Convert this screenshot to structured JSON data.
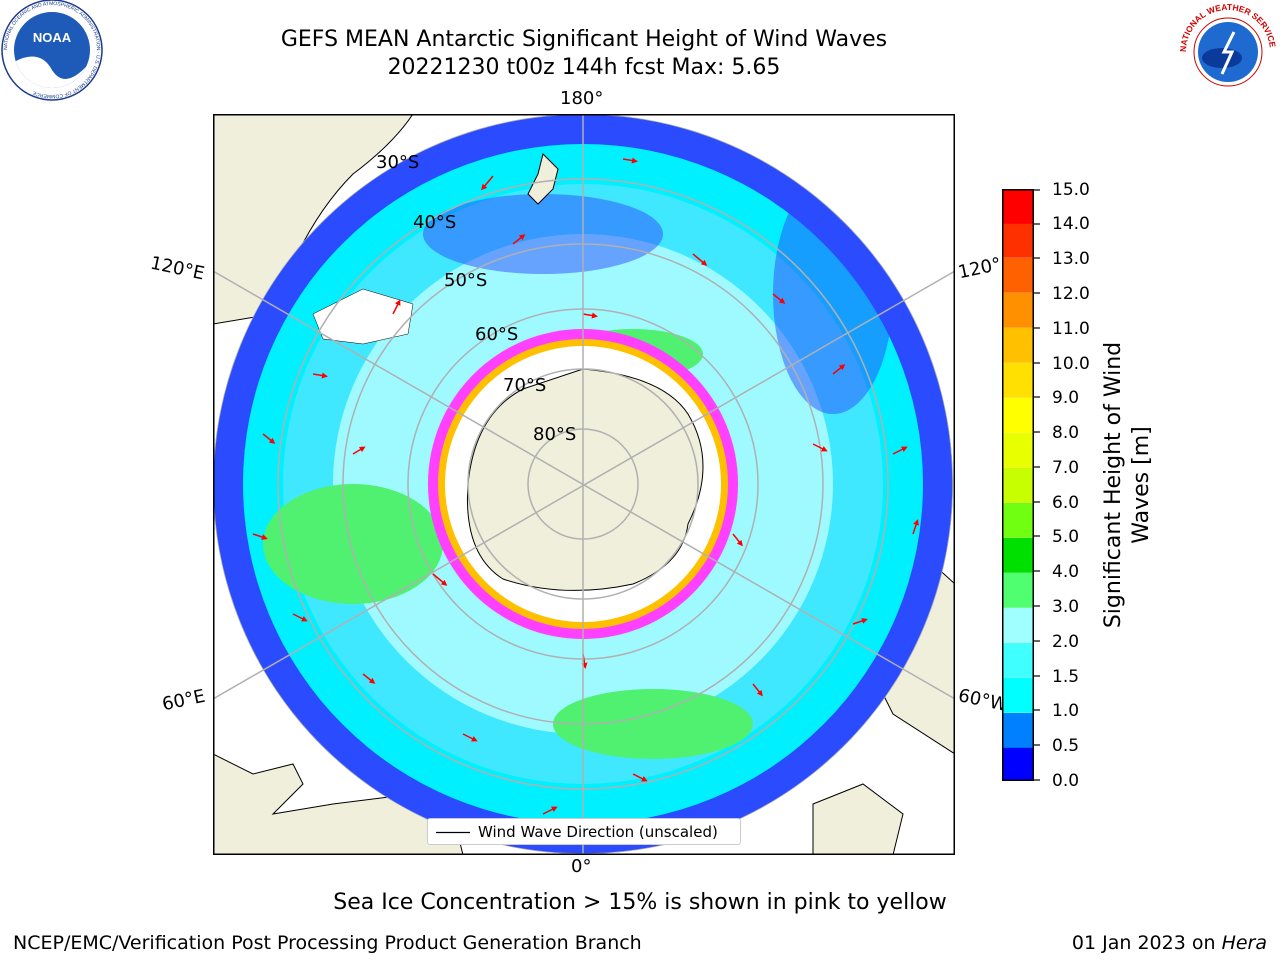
{
  "header": {
    "title_line1": "GEFS MEAN Antarctic Significant Height of Wind Waves",
    "title_line2": "20221230 t00z 144h fcst   Max: 5.65"
  },
  "logos": {
    "noaa": {
      "center_text": "NOAA",
      "ring_text": "NATIONAL OCEANIC AND ATMOSPHERIC ADMINISTRATION · U.S. DEPARTMENT OF COMMERCE"
    },
    "nws": {
      "ring_text": "NATIONAL WEATHER SERVICE"
    }
  },
  "map": {
    "longitude_labels": {
      "top": "180°",
      "bottom": "0°",
      "upper_left": "120°E",
      "upper_right": "120°",
      "lower_left": "60°E",
      "lower_right": "60°W"
    },
    "latitude_labels": [
      "30°S",
      "40°S",
      "50°S",
      "60°S",
      "70°S",
      "80°S"
    ],
    "legend": "Wind Wave Direction (unscaled)"
  },
  "colorbar": {
    "label_line1": "Significant Height of Wind",
    "label_line2": "Waves [m]",
    "ticks": [
      "0.0",
      "0.5",
      "1.0",
      "1.5",
      "2.0",
      "3.0",
      "4.0",
      "5.0",
      "6.0",
      "7.0",
      "8.0",
      "9.0",
      "10.0",
      "11.0",
      "12.0",
      "13.0",
      "14.0",
      "15.0"
    ],
    "colors": [
      "#0000ff",
      "#0080ff",
      "#00ffff",
      "#40ffff",
      "#a0ffff",
      "#50ff70",
      "#00e000",
      "#70ff10",
      "#c8ff00",
      "#e8ff00",
      "#ffff00",
      "#ffe000",
      "#ffc000",
      "#ff9000",
      "#ff6000",
      "#ff3000",
      "#ff0000"
    ]
  },
  "caption": "Sea Ice Concentration > 15% is shown in pink to yellow",
  "footer": {
    "left": "NCEP/EMC/Verification Post Processing Product Generation Branch",
    "right_prefix": "01 Jan 2023 on ",
    "right_italic": "Hera"
  }
}
